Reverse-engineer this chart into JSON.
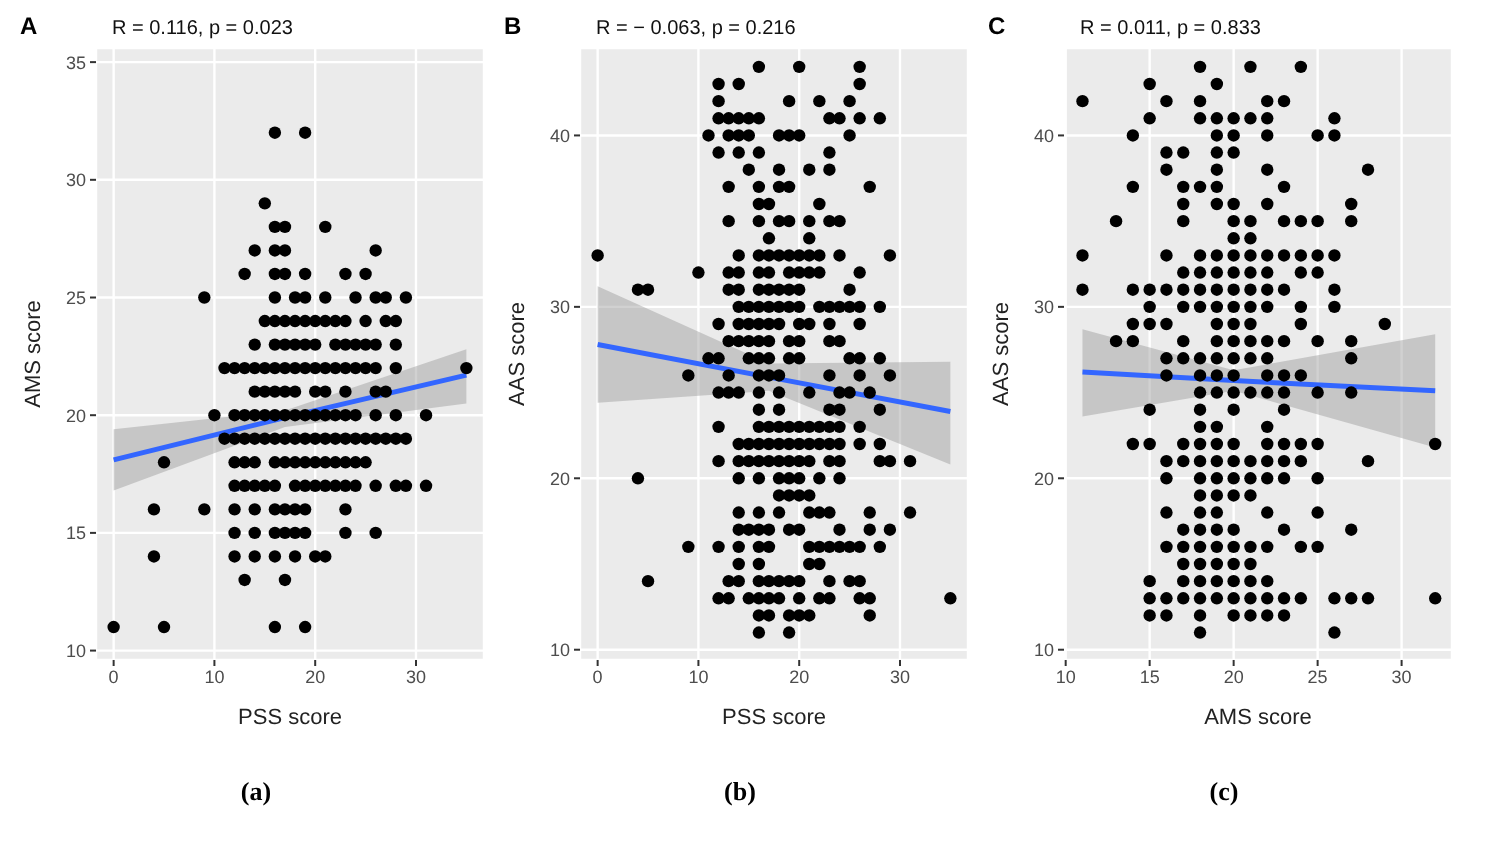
{
  "chart_data": [
    {
      "type": "scatter",
      "title": "A",
      "xlabel": "PSS score",
      "ylabel": "AMS score",
      "annotations": [
        "R = 0.116, p = 0.023",
        "(a)"
      ],
      "xlim": [
        -1.75,
        36.75
      ],
      "ylim": [
        9.6,
        35.6
      ],
      "xticks": [
        0,
        10,
        20,
        30
      ],
      "yticks": [
        10,
        15,
        20,
        25,
        30,
        35
      ],
      "grid": true,
      "legend": false,
      "series": [
        {
          "marker": "circle",
          "color": "#000000",
          "x": [
            16,
            19,
            15,
            16,
            17,
            21,
            14,
            16,
            17,
            26,
            13,
            16,
            17,
            19,
            23,
            25,
            9,
            16,
            18,
            19,
            21,
            24,
            26,
            27,
            29,
            15,
            16,
            17,
            18,
            19,
            20,
            21,
            22,
            23,
            25,
            27,
            28,
            14,
            16,
            17,
            18,
            19,
            20,
            22,
            23,
            24,
            25,
            26,
            28,
            11,
            12,
            13,
            14,
            15,
            16,
            17,
            18,
            19,
            20,
            21,
            22,
            23,
            24,
            25,
            26,
            28,
            35,
            14,
            15,
            16,
            17,
            18,
            20,
            21,
            23,
            26,
            27,
            10,
            12,
            13,
            14,
            15,
            16,
            17,
            18,
            19,
            20,
            21,
            22,
            23,
            24,
            26,
            28,
            31,
            11,
            12,
            13,
            14,
            15,
            16,
            17,
            18,
            19,
            20,
            21,
            22,
            23,
            24,
            25,
            26,
            27,
            28,
            29,
            5,
            12,
            13,
            14,
            16,
            17,
            18,
            19,
            20,
            21,
            22,
            23,
            24,
            25,
            12,
            13,
            14,
            15,
            16,
            18,
            19,
            20,
            21,
            22,
            23,
            24,
            26,
            28,
            29,
            31,
            4,
            9,
            12,
            14,
            16,
            17,
            18,
            19,
            23,
            12,
            14,
            16,
            17,
            18,
            19,
            23,
            26,
            4,
            12,
            14,
            16,
            18,
            20,
            21,
            13,
            17,
            0,
            5,
            16,
            19
          ],
          "values": [
            32,
            32,
            29,
            28,
            28,
            28,
            27,
            27,
            27,
            27,
            26,
            26,
            26,
            26,
            26,
            26,
            25,
            25,
            25,
            25,
            25,
            25,
            25,
            25,
            25,
            24,
            24,
            24,
            24,
            24,
            24,
            24,
            24,
            24,
            24,
            24,
            24,
            23,
            23,
            23,
            23,
            23,
            23,
            23,
            23,
            23,
            23,
            23,
            23,
            22,
            22,
            22,
            22,
            22,
            22,
            22,
            22,
            22,
            22,
            22,
            22,
            22,
            22,
            22,
            22,
            22,
            22,
            21,
            21,
            21,
            21,
            21,
            21,
            21,
            21,
            21,
            21,
            20,
            20,
            20,
            20,
            20,
            20,
            20,
            20,
            20,
            20,
            20,
            20,
            20,
            20,
            20,
            20,
            20,
            19,
            19,
            19,
            19,
            19,
            19,
            19,
            19,
            19,
            19,
            19,
            19,
            19,
            19,
            19,
            19,
            19,
            19,
            19,
            18,
            18,
            18,
            18,
            18,
            18,
            18,
            18,
            18,
            18,
            18,
            18,
            18,
            18,
            17,
            17,
            17,
            17,
            17,
            17,
            17,
            17,
            17,
            17,
            17,
            17,
            17,
            17,
            17,
            17,
            16,
            16,
            16,
            16,
            16,
            16,
            16,
            16,
            16,
            15,
            15,
            15,
            15,
            15,
            15,
            15,
            15,
            14,
            14,
            14,
            14,
            14,
            14,
            14,
            13,
            13,
            11,
            11,
            11,
            11
          ]
        },
        {
          "type": "line",
          "marker": "none",
          "color": "#3366ff",
          "x": [
            0,
            17,
            35
          ],
          "values": [
            18.1,
            19.9,
            21.7
          ],
          "lower": [
            16.8,
            19.5,
            20.5
          ],
          "upper": [
            19.4,
            20.2,
            22.8
          ]
        }
      ]
    },
    {
      "type": "scatter",
      "title": "B",
      "xlabel": "PSS score",
      "ylabel": "AAS score",
      "annotations": [
        "R = − 0.063, p = 0.216",
        "(b)"
      ],
      "xlim": [
        -1.75,
        36.75
      ],
      "ylim": [
        9.4,
        45.1
      ],
      "xticks": [
        0,
        10,
        20,
        30
      ],
      "yticks": [
        10,
        20,
        30,
        40
      ],
      "grid": true,
      "legend": false,
      "series": [
        {
          "marker": "circle",
          "color": "#000000",
          "x": [
            16,
            20,
            26,
            12,
            14,
            26,
            12,
            19,
            22,
            25,
            12,
            13,
            14,
            15,
            16,
            23,
            24,
            26,
            28,
            11,
            13,
            14,
            15,
            18,
            19,
            20,
            25,
            12,
            14,
            16,
            23,
            15,
            18,
            21,
            23,
            13,
            16,
            18,
            19,
            27,
            16,
            17,
            22,
            13,
            16,
            18,
            19,
            21,
            23,
            24,
            17,
            21,
            0,
            14,
            16,
            17,
            18,
            19,
            20,
            21,
            22,
            24,
            29,
            10,
            13,
            14,
            16,
            17,
            19,
            20,
            21,
            22,
            26,
            4,
            5,
            13,
            14,
            16,
            17,
            18,
            19,
            20,
            25,
            14,
            15,
            16,
            17,
            18,
            19,
            20,
            22,
            23,
            24,
            25,
            26,
            28,
            12,
            14,
            15,
            16,
            17,
            18,
            20,
            21,
            23,
            26,
            13,
            14,
            15,
            16,
            17,
            19,
            20,
            23,
            24,
            11,
            12,
            15,
            16,
            17,
            19,
            20,
            25,
            26,
            28,
            9,
            13,
            16,
            17,
            18,
            23,
            26,
            29,
            12,
            13,
            14,
            16,
            18,
            21,
            24,
            25,
            27,
            16,
            18,
            23,
            24,
            28,
            12,
            16,
            17,
            18,
            19,
            20,
            21,
            22,
            23,
            24,
            26,
            14,
            15,
            16,
            17,
            18,
            19,
            20,
            21,
            22,
            23,
            24,
            26,
            28,
            12,
            14,
            15,
            16,
            17,
            18,
            19,
            20,
            21,
            23,
            24,
            28,
            29,
            31,
            4,
            14,
            16,
            18,
            19,
            20,
            22,
            24,
            18,
            19,
            20,
            21,
            14,
            16,
            18,
            21,
            22,
            23,
            27,
            31,
            14,
            15,
            16,
            17,
            19,
            20,
            24,
            27,
            29,
            9,
            12,
            14,
            16,
            17,
            21,
            22,
            23,
            24,
            25,
            26,
            28,
            14,
            16,
            21,
            22,
            5,
            13,
            14,
            16,
            17,
            18,
            19,
            20,
            23,
            25,
            26,
            12,
            13,
            15,
            16,
            17,
            18,
            20,
            22,
            23,
            26,
            27,
            35,
            16,
            17,
            19,
            20,
            21,
            27,
            16,
            19
          ],
          "values": [
            44,
            44,
            44,
            43,
            43,
            43,
            42,
            42,
            42,
            42,
            41,
            41,
            41,
            41,
            41,
            41,
            41,
            41,
            41,
            40,
            40,
            40,
            40,
            40,
            40,
            40,
            40,
            39,
            39,
            39,
            39,
            38,
            38,
            38,
            38,
            37,
            37,
            37,
            37,
            37,
            36,
            36,
            36,
            35,
            35,
            35,
            35,
            35,
            35,
            35,
            34,
            34,
            33,
            33,
            33,
            33,
            33,
            33,
            33,
            33,
            33,
            33,
            33,
            32,
            32,
            32,
            32,
            32,
            32,
            32,
            32,
            32,
            32,
            31,
            31,
            31,
            31,
            31,
            31,
            31,
            31,
            31,
            31,
            30,
            30,
            30,
            30,
            30,
            30,
            30,
            30,
            30,
            30,
            30,
            30,
            30,
            29,
            29,
            29,
            29,
            29,
            29,
            29,
            29,
            29,
            29,
            28,
            28,
            28,
            28,
            28,
            28,
            28,
            28,
            28,
            27,
            27,
            27,
            27,
            27,
            27,
            27,
            27,
            27,
            27,
            26,
            26,
            26,
            26,
            26,
            26,
            26,
            26,
            25,
            25,
            25,
            25,
            25,
            25,
            25,
            25,
            25,
            24,
            24,
            24,
            24,
            24,
            23,
            23,
            23,
            23,
            23,
            23,
            23,
            23,
            23,
            23,
            23,
            22,
            22,
            22,
            22,
            22,
            22,
            22,
            22,
            22,
            22,
            22,
            22,
            22,
            21,
            21,
            21,
            21,
            21,
            21,
            21,
            21,
            21,
            21,
            21,
            21,
            21,
            21,
            20,
            20,
            20,
            20,
            20,
            20,
            20,
            20,
            19,
            19,
            19,
            19,
            18,
            18,
            18,
            18,
            18,
            18,
            18,
            18,
            17,
            17,
            17,
            17,
            17,
            17,
            17,
            17,
            17,
            16,
            16,
            16,
            16,
            16,
            16,
            16,
            16,
            16,
            16,
            16,
            16,
            15,
            15,
            15,
            15,
            14,
            14,
            14,
            14,
            14,
            14,
            14,
            14,
            14,
            14,
            14,
            13,
            13,
            13,
            13,
            13,
            13,
            13,
            13,
            13,
            13,
            13,
            13,
            12,
            12,
            12,
            12,
            12,
            12,
            11,
            11
          ]
        },
        {
          "type": "line",
          "marker": "none",
          "color": "#3366ff",
          "x": [
            0,
            17,
            35
          ],
          "values": [
            27.8,
            25.9,
            23.9
          ],
          "lower": [
            24.4,
            25.1,
            20.8
          ],
          "upper": [
            31.2,
            26.7,
            26.8
          ]
        }
      ]
    },
    {
      "type": "scatter",
      "title": "C",
      "xlabel": "AMS score",
      "ylabel": "AAS score",
      "annotations": [
        "R = 0.011, p = 0.833",
        "(c)"
      ],
      "xlim": [
        9.9,
        33
      ],
      "ylim": [
        9.4,
        45.1
      ],
      "xticks": [
        10,
        15,
        20,
        25,
        30
      ],
      "yticks": [
        10,
        20,
        30,
        40
      ],
      "grid": true,
      "legend": false,
      "series": [
        {
          "marker": "circle",
          "color": "#000000",
          "x": [
            18,
            21,
            24,
            15,
            19,
            11,
            16,
            18,
            22,
            23,
            15,
            18,
            19,
            20,
            21,
            22,
            26,
            14,
            19,
            20,
            22,
            25,
            26,
            16,
            17,
            19,
            20,
            16,
            19,
            22,
            28,
            14,
            17,
            18,
            19,
            23,
            17,
            19,
            20,
            22,
            27,
            13,
            17,
            20,
            21,
            23,
            24,
            25,
            27,
            20,
            21,
            11,
            16,
            18,
            19,
            20,
            21,
            22,
            23,
            24,
            25,
            26,
            17,
            18,
            19,
            20,
            21,
            22,
            24,
            25,
            11,
            14,
            15,
            16,
            17,
            18,
            19,
            20,
            21,
            22,
            23,
            26,
            15,
            17,
            18,
            19,
            20,
            21,
            22,
            24,
            26,
            14,
            15,
            16,
            19,
            20,
            21,
            24,
            29,
            13,
            14,
            17,
            19,
            20,
            21,
            22,
            23,
            25,
            27,
            16,
            17,
            18,
            19,
            20,
            21,
            22,
            27,
            16,
            18,
            19,
            20,
            22,
            23,
            24,
            18,
            19,
            20,
            21,
            22,
            23,
            25,
            27,
            15,
            18,
            20,
            23,
            18,
            19,
            22,
            14,
            15,
            17,
            18,
            19,
            20,
            22,
            23,
            24,
            25,
            32,
            16,
            17,
            18,
            19,
            20,
            21,
            22,
            23,
            24,
            28,
            16,
            18,
            19,
            20,
            21,
            22,
            23,
            25,
            18,
            19,
            20,
            21,
            16,
            18,
            19,
            22,
            25,
            17,
            18,
            19,
            20,
            23,
            27,
            16,
            17,
            18,
            19,
            20,
            21,
            22,
            24,
            25,
            17,
            18,
            19,
            20,
            21,
            15,
            17,
            18,
            19,
            20,
            21,
            22,
            15,
            16,
            17,
            18,
            19,
            20,
            21,
            22,
            23,
            24,
            26,
            27,
            28,
            32,
            15,
            16,
            18,
            20,
            21,
            22,
            23,
            18,
            26
          ],
          "values": [
            44,
            44,
            44,
            43,
            43,
            42,
            42,
            42,
            42,
            42,
            41,
            41,
            41,
            41,
            41,
            41,
            41,
            40,
            40,
            40,
            40,
            40,
            40,
            39,
            39,
            39,
            39,
            38,
            38,
            38,
            38,
            37,
            37,
            37,
            37,
            37,
            36,
            36,
            36,
            36,
            36,
            35,
            35,
            35,
            35,
            35,
            35,
            35,
            35,
            34,
            34,
            33,
            33,
            33,
            33,
            33,
            33,
            33,
            33,
            33,
            33,
            33,
            32,
            32,
            32,
            32,
            32,
            32,
            32,
            32,
            31,
            31,
            31,
            31,
            31,
            31,
            31,
            31,
            31,
            31,
            31,
            31,
            30,
            30,
            30,
            30,
            30,
            30,
            30,
            30,
            30,
            29,
            29,
            29,
            29,
            29,
            29,
            29,
            29,
            28,
            28,
            28,
            28,
            28,
            28,
            28,
            28,
            28,
            28,
            27,
            27,
            27,
            27,
            27,
            27,
            27,
            27,
            26,
            26,
            26,
            26,
            26,
            26,
            26,
            25,
            25,
            25,
            25,
            25,
            25,
            25,
            25,
            24,
            24,
            24,
            24,
            23,
            23,
            23,
            22,
            22,
            22,
            22,
            22,
            22,
            22,
            22,
            22,
            22,
            22,
            21,
            21,
            21,
            21,
            21,
            21,
            21,
            21,
            21,
            21,
            20,
            20,
            20,
            20,
            20,
            20,
            20,
            20,
            19,
            19,
            19,
            19,
            18,
            18,
            18,
            18,
            18,
            17,
            17,
            17,
            17,
            17,
            17,
            16,
            16,
            16,
            16,
            16,
            16,
            16,
            16,
            16,
            15,
            15,
            15,
            15,
            15,
            14,
            14,
            14,
            14,
            14,
            14,
            14,
            13,
            13,
            13,
            13,
            13,
            13,
            13,
            13,
            13,
            13,
            13,
            13,
            13,
            13,
            12,
            12,
            12,
            12,
            12,
            12,
            12,
            11,
            11
          ]
        },
        {
          "type": "line",
          "marker": "none",
          "color": "#3366ff",
          "x": [
            11,
            20,
            32
          ],
          "values": [
            26.2,
            25.7,
            25.1
          ],
          "lower": [
            23.6,
            25.1,
            21.8
          ],
          "upper": [
            28.7,
            26.3,
            28.4
          ]
        }
      ]
    }
  ]
}
